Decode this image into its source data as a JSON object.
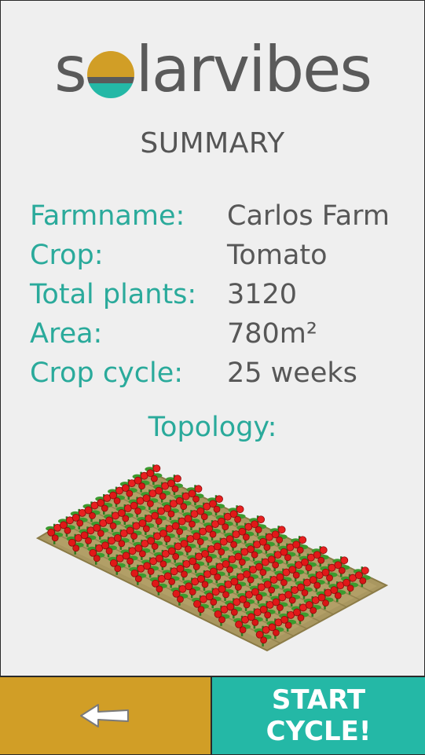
{
  "logo": {
    "text_left": "s",
    "text_right": "larvibes",
    "colors": {
      "sun_top": "#d19e26",
      "sun_mid": "#5a5a5a",
      "sun_bottom": "#24b8a6"
    }
  },
  "summary": {
    "title": "SUMMARY",
    "rows": [
      {
        "label": "Farmname:",
        "value": "Carlos Farm"
      },
      {
        "label": "Crop:",
        "value": "Tomato"
      },
      {
        "label": "Total plants:",
        "value": "3120"
      },
      {
        "label": "Area:",
        "value": "780m²"
      },
      {
        "label": "Crop cycle:",
        "value": "25 weeks"
      }
    ]
  },
  "topology": {
    "title": "Topology:",
    "image": "tomato-field-illustration"
  },
  "footer": {
    "back_icon": "arrow-left-icon",
    "start_label": "START\nCYCLE!"
  },
  "colors": {
    "accent": "#2aaa9b",
    "text": "#575757",
    "back_button": "#d19e26",
    "start_button": "#24b8a6",
    "background": "#efefef"
  }
}
